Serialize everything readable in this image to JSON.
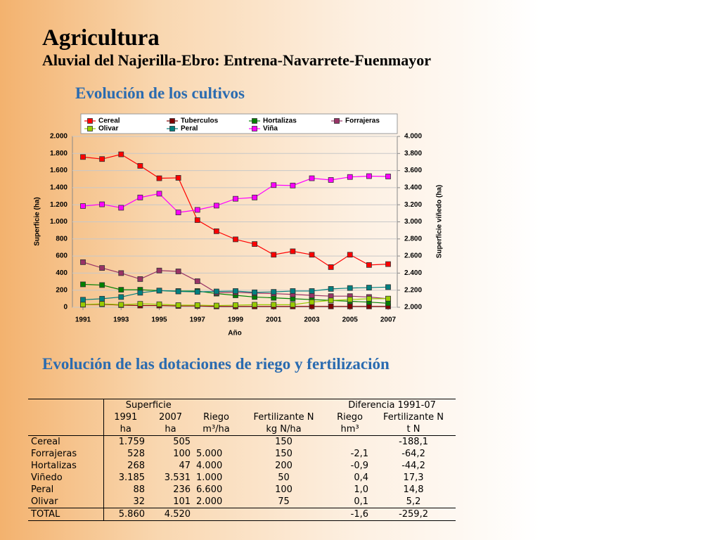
{
  "header": {
    "title": "Agricultura",
    "subtitle": "Aluvial del Najerilla-Ebro: Entrena-Navarrete-Fuenmayor"
  },
  "chart_data": {
    "type": "line",
    "title": "Evolución de los cultivos",
    "x_label": "Año",
    "y_label": "Superficie (ha)",
    "y2_label": "Superficie viñedo (ha)",
    "x": [
      1991,
      1992,
      1993,
      1994,
      1995,
      1996,
      1997,
      1998,
      1999,
      2000,
      2001,
      2002,
      2003,
      2004,
      2005,
      2006,
      2007
    ],
    "xlim": [
      1991,
      2007
    ],
    "xticks": [
      1991,
      1993,
      1995,
      1997,
      1999,
      2001,
      2003,
      2005,
      2007
    ],
    "ylim": [
      0,
      2000
    ],
    "yticks": [
      0,
      200,
      400,
      600,
      800,
      {
        "value": 1000,
        "label": "1.000"
      },
      {
        "value": 1200,
        "label": "1.200"
      },
      {
        "value": 1400,
        "label": "1.400"
      },
      {
        "value": 1600,
        "label": "1.600"
      },
      {
        "value": 1800,
        "label": "1.800"
      },
      {
        "value": 2000,
        "label": "2.000"
      }
    ],
    "y2lim": [
      2000,
      4000
    ],
    "y2ticks": [
      {
        "value": 2000,
        "label": "2.000"
      },
      {
        "value": 2200,
        "label": "2.200"
      },
      {
        "value": 2400,
        "label": "2.400"
      },
      {
        "value": 2600,
        "label": "2.600"
      },
      {
        "value": 2800,
        "label": "2.800"
      },
      {
        "value": 3000,
        "label": "3.000"
      },
      {
        "value": 3200,
        "label": "3.200"
      },
      {
        "value": 3400,
        "label": "3.400"
      },
      {
        "value": 3600,
        "label": "3.600"
      },
      {
        "value": 3800,
        "label": "3.800"
      },
      {
        "value": 4000,
        "label": "4.000"
      }
    ],
    "grid": true,
    "legend": "top",
    "series": [
      {
        "name": "Cereal",
        "color": "#ff0000",
        "values": [
          1759,
          1735,
          1790,
          1655,
          1510,
          1515,
          1020,
          890,
          795,
          740,
          615,
          655,
          615,
          470,
          615,
          495,
          505
        ]
      },
      {
        "name": "Tuberculos",
        "color": "#800000",
        "values": [
          30,
          35,
          25,
          20,
          20,
          15,
          15,
          10,
          10,
          10,
          10,
          10,
          10,
          10,
          10,
          10,
          10
        ]
      },
      {
        "name": "Hortalizas",
        "color": "#008000",
        "values": [
          268,
          260,
          205,
          205,
          195,
          190,
          190,
          160,
          140,
          120,
          110,
          100,
          90,
          80,
          70,
          60,
          47
        ]
      },
      {
        "name": "Forrajeras",
        "color": "#993366",
        "values": [
          528,
          460,
          400,
          330,
          430,
          420,
          305,
          170,
          175,
          165,
          160,
          150,
          140,
          130,
          130,
          120,
          100
        ]
      },
      {
        "name": "Olivar",
        "color": "#99cc00",
        "values": [
          32,
          40,
          30,
          40,
          35,
          25,
          25,
          20,
          25,
          30,
          30,
          30,
          60,
          80,
          90,
          100,
          101
        ]
      },
      {
        "name": "Peral",
        "color": "#008080",
        "values": [
          88,
          100,
          120,
          170,
          195,
          185,
          180,
          185,
          190,
          175,
          180,
          190,
          190,
          215,
          225,
          230,
          236
        ]
      },
      {
        "name": "Viña",
        "color": "#ff00ff",
        "axis": "y2",
        "values": [
          3185,
          3205,
          3165,
          3285,
          3330,
          3110,
          3140,
          3190,
          3270,
          3285,
          3430,
          3425,
          3510,
          3490,
          3525,
          3535,
          3531
        ]
      }
    ]
  },
  "table": {
    "title": "Evolución de las dotaciones de riego y fertilización",
    "group_superficie": "Superficie",
    "group_diferencia": "Diferencia 1991-07",
    "header_rows": [
      [
        null,
        "1991",
        "2007",
        "Riego",
        "Fertilizante N",
        "Riego",
        "Fertilizante N"
      ],
      [
        null,
        "ha",
        "ha",
        "m³/ha",
        "kg N/ha",
        "hm³",
        "t N"
      ]
    ],
    "rows": [
      [
        "Cereal",
        "1.759",
        "505",
        null,
        "150",
        null,
        "-188,1"
      ],
      [
        "Forrajeras",
        "528",
        "100",
        "5.000",
        "150",
        "-2,1",
        "-64,2"
      ],
      [
        "Hortalizas",
        "268",
        "47",
        "4.000",
        "200",
        "-0,9",
        "-44,2"
      ],
      [
        "Viñedo",
        "3.185",
        "3.531",
        "1.000",
        "50",
        "0,4",
        "17,3"
      ],
      [
        "Peral",
        "88",
        "236",
        "6.600",
        "100",
        "1,0",
        "14,8"
      ],
      [
        "Olivar",
        "32",
        "101",
        "2.000",
        "75",
        "0,1",
        "5,2"
      ],
      [
        "TOTAL",
        "5.860",
        "4.520",
        null,
        null,
        "-1,6",
        "-259,2"
      ]
    ]
  }
}
